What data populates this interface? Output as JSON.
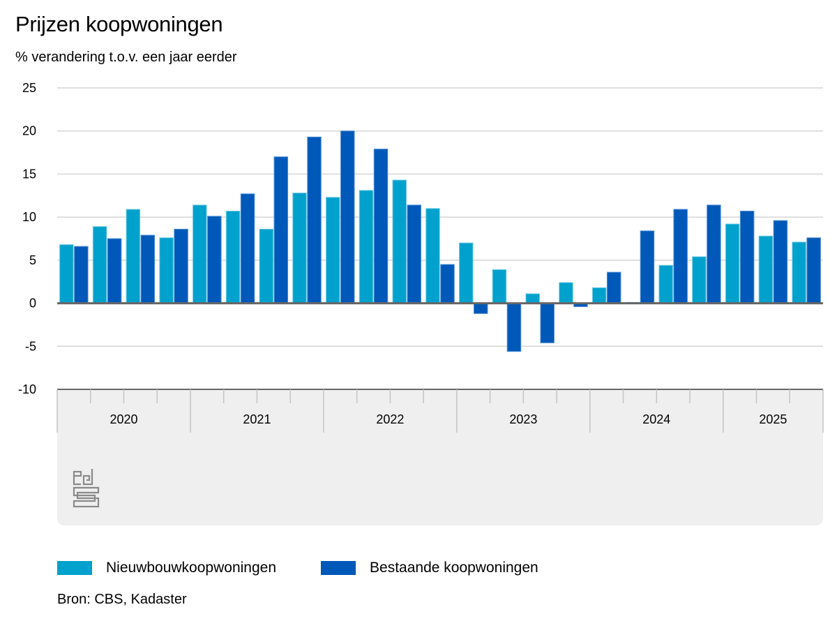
{
  "chart_data": {
    "type": "bar",
    "title": "Prijzen koopwoningen",
    "subtitle": "% verandering t.o.v. een jaar eerder",
    "xlabel": "",
    "ylabel": "% verandering t.o.v. een jaar eerder",
    "ylim": [
      -10,
      25
    ],
    "yticks": [
      25,
      20,
      15,
      10,
      5,
      0,
      -5,
      -10
    ],
    "ytick_labels": [
      "25",
      "20",
      "15",
      "10",
      "5",
      "0",
      "-5",
      "-10"
    ],
    "grid": true,
    "years": [
      {
        "label": "2020",
        "quarters": 4
      },
      {
        "label": "2021",
        "quarters": 4
      },
      {
        "label": "2022",
        "quarters": 4
      },
      {
        "label": "2023",
        "quarters": 4
      },
      {
        "label": "2024",
        "quarters": 4
      },
      {
        "label": "2025",
        "quarters": 3
      }
    ],
    "categories": [
      "2020 Q1",
      "2020 Q2",
      "2020 Q3",
      "2020 Q4",
      "2021 Q1",
      "2021 Q2",
      "2021 Q3",
      "2021 Q4",
      "2022 Q1",
      "2022 Q2",
      "2022 Q3",
      "2022 Q4",
      "2023 Q1",
      "2023 Q2",
      "2023 Q3",
      "2023 Q4",
      "2024 Q1",
      "2024 Q2",
      "2024 Q3",
      "2024 Q4",
      "2025 Q1",
      "2025 Q2",
      "2025 Q3"
    ],
    "series": [
      {
        "name": "Nieuwbouwkoopwoningen",
        "color": "#00a1cd",
        "values": [
          6.8,
          8.9,
          10.9,
          7.6,
          11.4,
          10.7,
          8.6,
          12.8,
          12.3,
          13.1,
          14.3,
          11.0,
          7.0,
          3.9,
          1.1,
          2.4,
          1.8,
          0.1,
          4.4,
          5.4,
          9.2,
          7.8,
          7.1
        ]
      },
      {
        "name": "Bestaande koopwoningen",
        "color": "#0058b8",
        "values": [
          6.6,
          7.5,
          7.9,
          8.6,
          10.1,
          12.7,
          17.0,
          19.3,
          20.0,
          17.9,
          11.4,
          4.5,
          -1.2,
          -5.6,
          -4.6,
          -0.4,
          3.6,
          8.4,
          10.9,
          11.4,
          10.7,
          9.6,
          7.6
        ]
      }
    ],
    "legend_position": "bottom-left",
    "source": "Bron: CBS, Kadaster",
    "logo": "cbs"
  }
}
